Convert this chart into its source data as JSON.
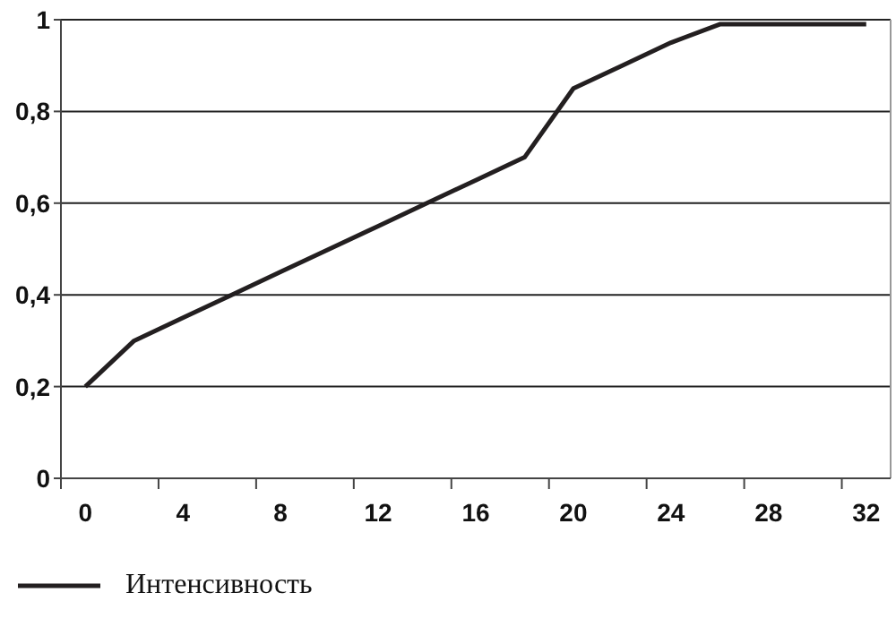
{
  "chart_data": {
    "type": "line",
    "categories": [
      "0",
      null,
      "4",
      null,
      "8",
      null,
      "12",
      null,
      "16",
      null,
      "20",
      null,
      "24",
      null,
      "28",
      null,
      "32"
    ],
    "series": [
      {
        "name": "Интенсивность",
        "color": "#231f20",
        "values": [
          0.2,
          0.3,
          0.35,
          0.4,
          0.45,
          0.5,
          0.55,
          0.6,
          0.65,
          0.7,
          0.85,
          0.9,
          0.95,
          0.99,
          0.99,
          0.99,
          0.99
        ]
      }
    ],
    "ylim": [
      0,
      1
    ],
    "yticks": [
      0,
      {
        "value": 0.2,
        "label": "0,2"
      },
      {
        "value": 0.4,
        "label": "0,4"
      },
      {
        "value": 0.6,
        "label": "0,6"
      },
      {
        "value": 0.8,
        "label": "0,8"
      },
      1
    ],
    "grid": "y",
    "legend": "bottom",
    "marker": "none",
    "line_style": "solid"
  }
}
